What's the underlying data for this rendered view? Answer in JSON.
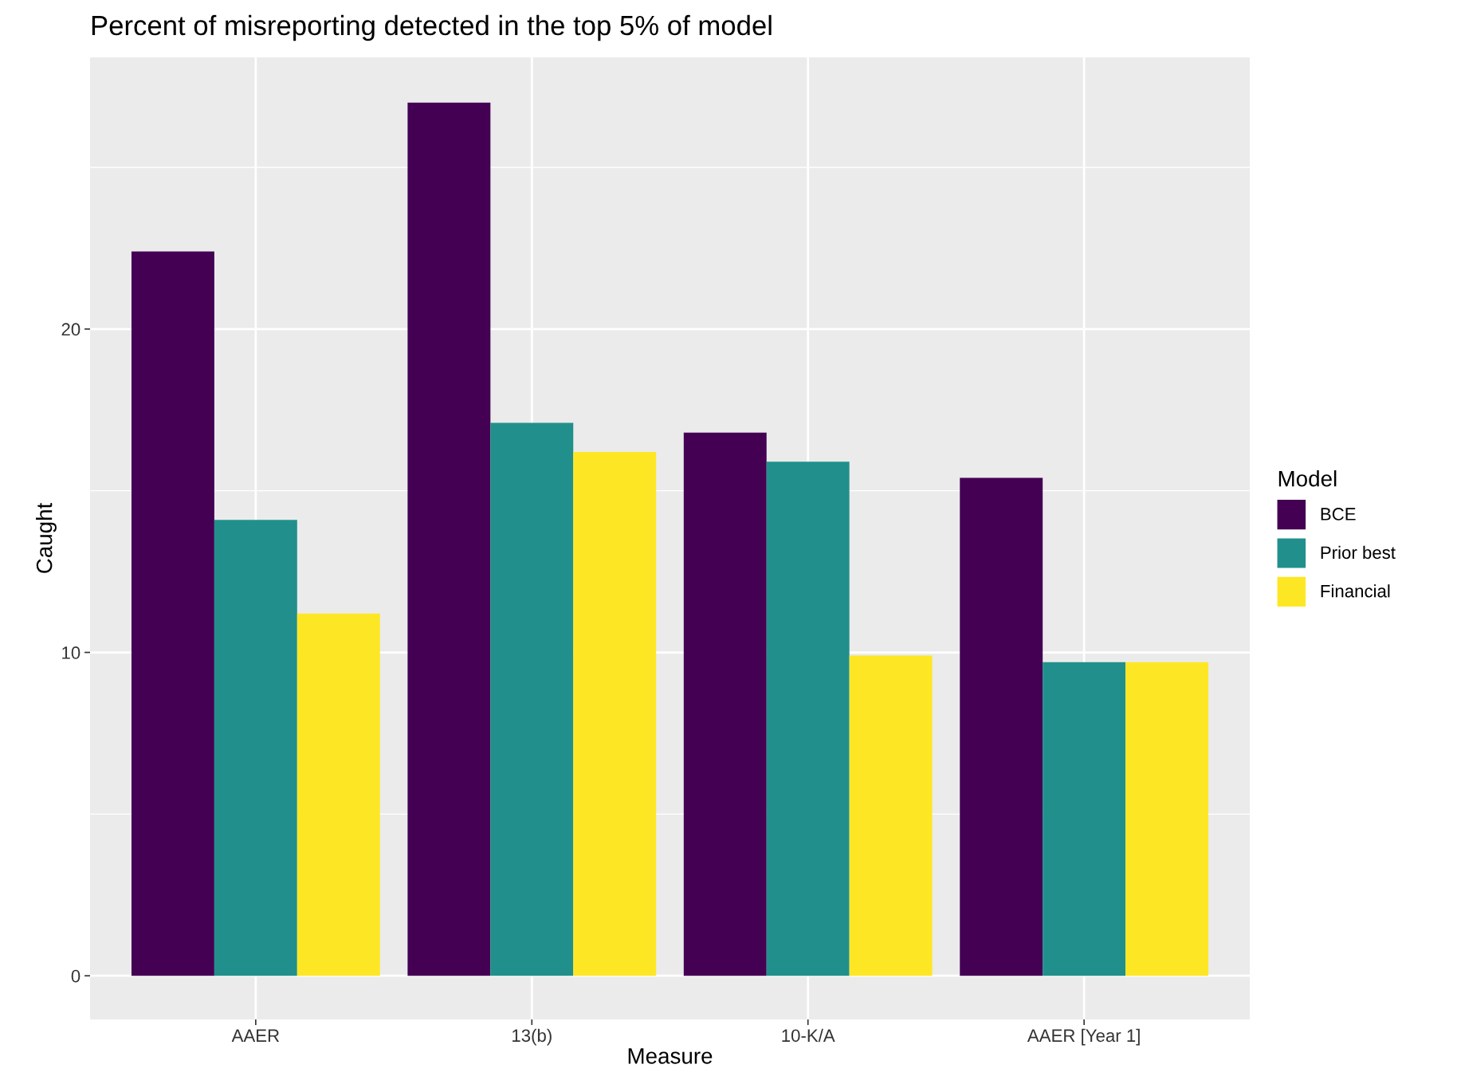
{
  "chart_data": {
    "type": "bar",
    "title": "Percent of misreporting detected in the top 5% of model",
    "xlabel": "Measure",
    "ylabel": "Caught",
    "legend_title": "Model",
    "categories": [
      "AAER",
      "13(b)",
      "10-K/A",
      "AAER [Year 1]"
    ],
    "series": [
      {
        "name": "BCE",
        "color": "#440154",
        "values": [
          22.4,
          27.0,
          16.8,
          15.4
        ]
      },
      {
        "name": "Prior best",
        "color": "#21908c",
        "values": [
          14.1,
          17.1,
          15.9,
          9.7
        ]
      },
      {
        "name": "Financial",
        "color": "#fde725",
        "values": [
          11.2,
          16.2,
          9.9,
          9.7
        ]
      }
    ],
    "ylim": [
      -1.35,
      28.4
    ],
    "yticks": [
      0,
      10,
      20
    ],
    "grid": true,
    "legend": "right"
  }
}
